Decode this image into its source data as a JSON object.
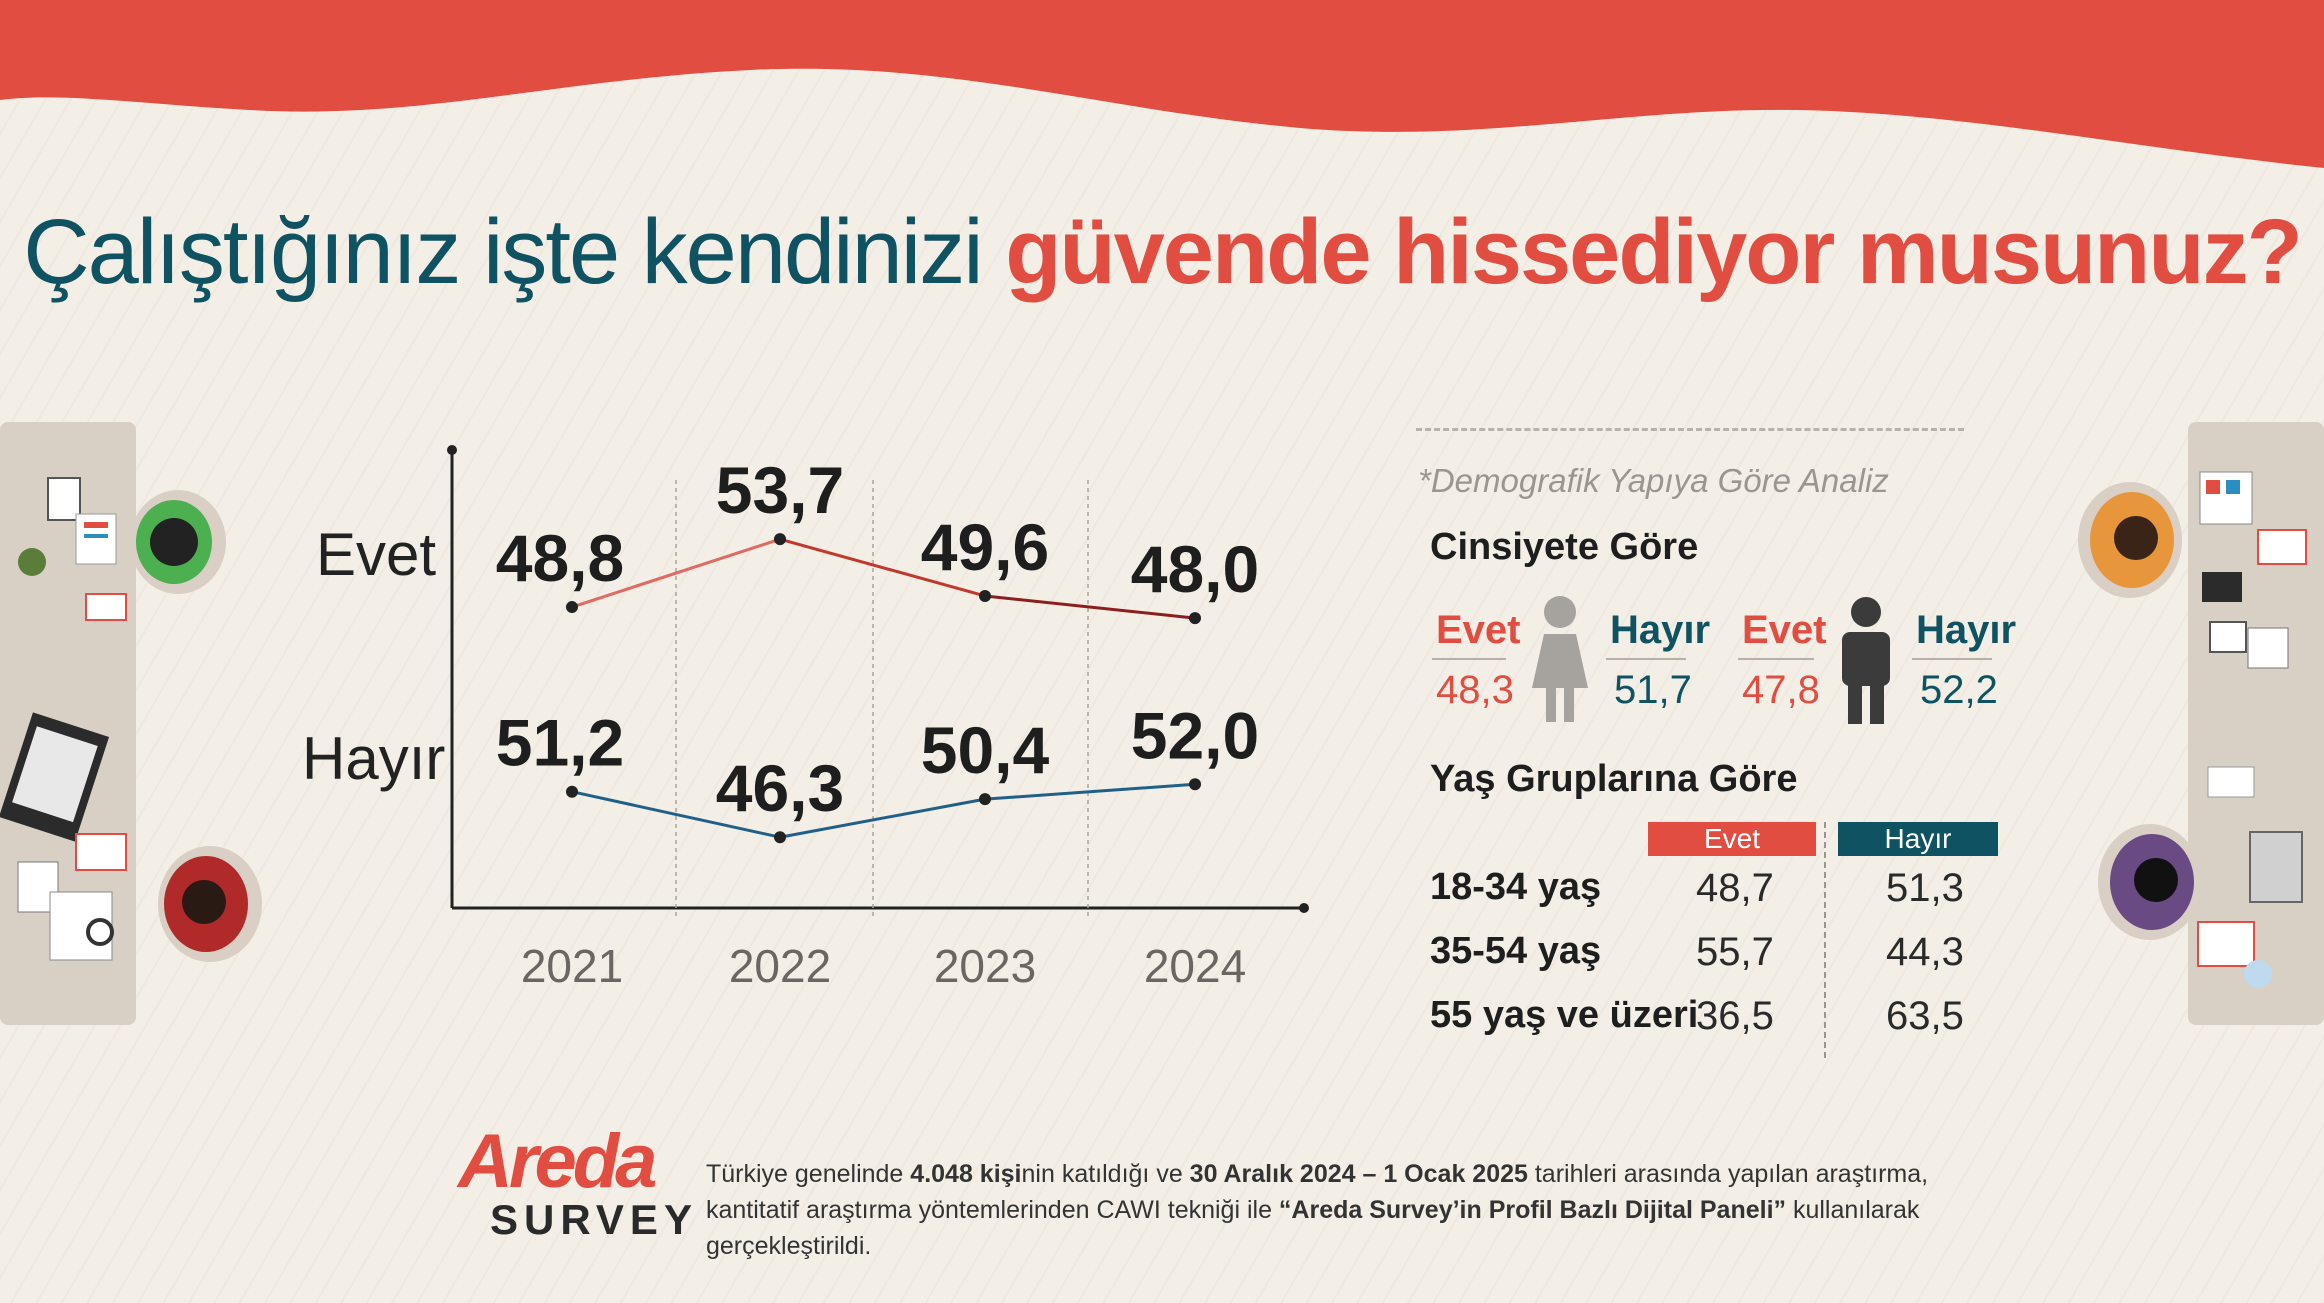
{
  "title": {
    "part1": "Çalıştığınız işte kendinizi",
    "part2": "güvende hissediyor musunuz?"
  },
  "colors": {
    "brand_red": "#e14d40",
    "teal": "#0f5261",
    "evet_line": "#c0392b",
    "hayir_line": "#1f5f88",
    "background": "#f3eee6"
  },
  "chart_data": {
    "type": "line",
    "categories": [
      "2021",
      "2022",
      "2023",
      "2024"
    ],
    "series": [
      {
        "name": "Evet",
        "values": [
          48.8,
          53.7,
          49.6,
          48.0
        ],
        "labels": [
          "48,8",
          "53,7",
          "49,6",
          "48,0"
        ]
      },
      {
        "name": "Hayır",
        "values": [
          51.2,
          46.3,
          50.4,
          52.0
        ],
        "labels": [
          "51,2",
          "46,3",
          "50,4",
          "52,0"
        ]
      }
    ],
    "title": "",
    "xlabel": "",
    "ylabel": "",
    "grid": "vertical dashed separators between years",
    "legend": "row labels left"
  },
  "demographics": {
    "note": "*Demografik Yapıya Göre Analiz",
    "gender": {
      "heading": "Cinsiyete Göre",
      "female": {
        "icon": "female-icon",
        "yes_label": "Evet",
        "yes_value": "48,3",
        "no_label": "Hayır",
        "no_value": "51,7"
      },
      "male": {
        "icon": "male-icon",
        "yes_label": "Evet",
        "yes_value": "47,8",
        "no_label": "Hayır",
        "no_value": "52,2"
      }
    },
    "age": {
      "heading": "Yaş Gruplarına Göre",
      "col_yes": "Evet",
      "col_no": "Hayır",
      "rows": [
        {
          "group": "18-34 yaş",
          "yes": "48,7",
          "no": "51,3"
        },
        {
          "group": "35-54 yaş",
          "yes": "55,7",
          "no": "44,3"
        },
        {
          "group": "55 yaş ve üzeri",
          "yes": "36,5",
          "no": "63,5"
        }
      ]
    }
  },
  "logo": {
    "word": "Areda",
    "sub": "SURVEY"
  },
  "footnote": {
    "t1": "Türkiye genelinde ",
    "b1": "4.048 kişi",
    "t2": "nin katıldığı ve ",
    "b2": "30 Aralık 2024 – 1 Ocak 2025",
    "t3": " tarihleri arasında yapılan araştırma, kantitatif araştırma yöntemlerinden CAWI tekniği ile ",
    "b3": "“Areda  Survey’in Profil Bazlı Dijital Paneli”",
    "t4": " kullanılarak gerçekleştirildi."
  }
}
